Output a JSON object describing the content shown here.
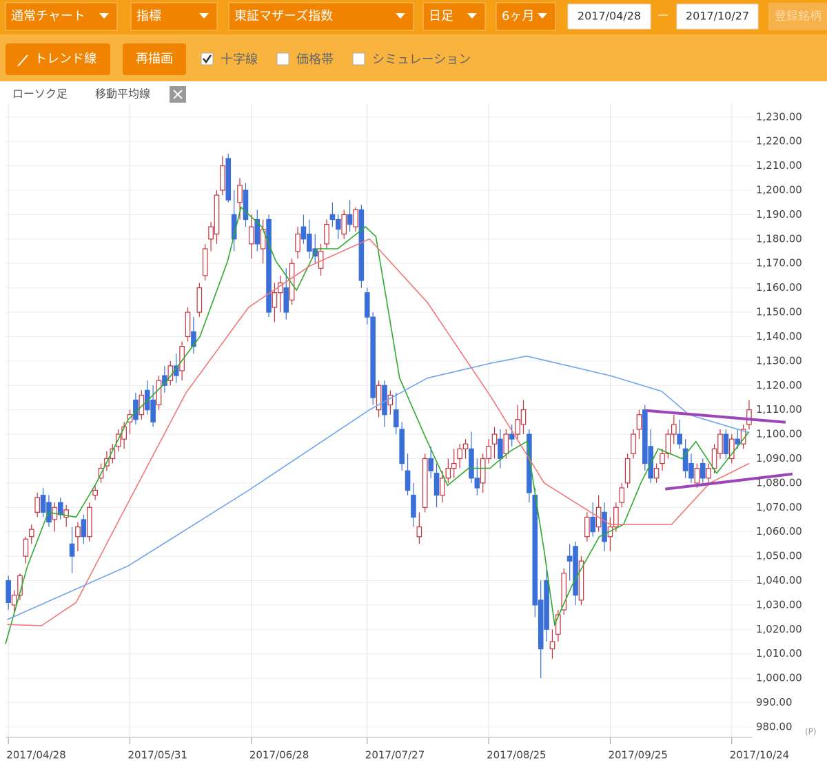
{
  "toolbar": {
    "chart_type": "通常チャート",
    "indicator": "指標",
    "symbol": "東証マザーズ指数",
    "interval": "日足",
    "period": "6ヶ月",
    "from": "2017/04/28",
    "separator": "—",
    "to": "2017/10/27",
    "registered": "登録銘柄"
  },
  "toolbar2": {
    "trend": "トレンド線",
    "redraw": "再描画",
    "checkboxes": [
      {
        "label": "十字線",
        "checked": true
      },
      {
        "label": "価格帯",
        "checked": false
      },
      {
        "label": "シミュレーション",
        "checked": false
      }
    ]
  },
  "chart_header": {
    "candles": "ローソク足",
    "ma": "移動平均線"
  },
  "chart_data": {
    "type": "candlestick",
    "unit_label": "(P)",
    "up_color": "#c8323c",
    "down_color": "#3a6fd8",
    "grid": true,
    "xlim": [
      -0.5,
      128.6
    ],
    "ylim": [
      976.3,
      1235.6
    ],
    "xticks": [
      {
        "value": 0,
        "label": "2017/04/28"
      },
      {
        "value": 21,
        "label": "2017/05/31"
      },
      {
        "value": 42,
        "label": "2017/06/28"
      },
      {
        "value": 62,
        "label": "2017/07/27"
      },
      {
        "value": 83,
        "label": "2017/08/25"
      },
      {
        "value": 104,
        "label": "2017/09/25"
      },
      {
        "value": 125,
        "label": "2017/10/24"
      }
    ],
    "yticks": [
      {
        "value": 980,
        "label": "980.00"
      },
      {
        "value": 990,
        "label": "990.00"
      },
      {
        "value": 1000,
        "label": "1,000.00"
      },
      {
        "value": 1010,
        "label": "1,010.00"
      },
      {
        "value": 1020,
        "label": "1,020.00"
      },
      {
        "value": 1030,
        "label": "1,030.00"
      },
      {
        "value": 1040,
        "label": "1,040.00"
      },
      {
        "value": 1050,
        "label": "1,050.00"
      },
      {
        "value": 1060,
        "label": "1,060.00"
      },
      {
        "value": 1070,
        "label": "1,070.00"
      },
      {
        "value": 1080,
        "label": "1,080.00"
      },
      {
        "value": 1090,
        "label": "1,090.00"
      },
      {
        "value": 1100,
        "label": "1,100.00"
      },
      {
        "value": 1110,
        "label": "1,110.00"
      },
      {
        "value": 1120,
        "label": "1,120.00"
      },
      {
        "value": 1130,
        "label": "1,130.00"
      },
      {
        "value": 1140,
        "label": "1,140.00"
      },
      {
        "value": 1150,
        "label": "1,150.00"
      },
      {
        "value": 1160,
        "label": "1,160.00"
      },
      {
        "value": 1170,
        "label": "1,170.00"
      },
      {
        "value": 1180,
        "label": "1,180.00"
      },
      {
        "value": 1190,
        "label": "1,190.00"
      },
      {
        "value": 1200,
        "label": "1,200.00"
      },
      {
        "value": 1210,
        "label": "1,210.00"
      },
      {
        "value": 1220,
        "label": "1,220.00"
      },
      {
        "value": 1230,
        "label": "1,230.00"
      }
    ],
    "candles": [
      [
        1040,
        1042,
        1028,
        1031
      ],
      [
        1030,
        1036,
        1027,
        1034
      ],
      [
        1034,
        1043,
        1032,
        1042
      ],
      [
        1050,
        1058,
        1047,
        1057
      ],
      [
        1058,
        1063,
        1055,
        1061
      ],
      [
        1068,
        1076,
        1066,
        1074
      ],
      [
        1075,
        1078,
        1066,
        1068
      ],
      [
        1072,
        1075,
        1062,
        1064
      ],
      [
        1065,
        1072,
        1060,
        1070
      ],
      [
        1072,
        1074,
        1065,
        1067
      ],
      [
        1066,
        1071,
        1062,
        1069
      ],
      [
        1055,
        1062,
        1043,
        1050
      ],
      [
        1058,
        1064,
        1052,
        1062
      ],
      [
        1065,
        1067,
        1055,
        1058
      ],
      [
        1058,
        1072,
        1056,
        1070
      ],
      [
        1075,
        1079,
        1073,
        1077
      ],
      [
        1082,
        1088,
        1080,
        1086
      ],
      [
        1087,
        1093,
        1085,
        1090
      ],
      [
        1090,
        1096,
        1088,
        1094
      ],
      [
        1095,
        1102,
        1093,
        1100
      ],
      [
        1098,
        1105,
        1094,
        1103
      ],
      [
        1105,
        1110,
        1100,
        1108
      ],
      [
        1114,
        1117,
        1104,
        1106
      ],
      [
        1108,
        1118,
        1106,
        1116
      ],
      [
        1118,
        1122,
        1108,
        1110
      ],
      [
        1114,
        1120,
        1103,
        1105
      ],
      [
        1112,
        1124,
        1110,
        1122
      ],
      [
        1124,
        1128,
        1117,
        1120
      ],
      [
        1122,
        1130,
        1120,
        1128
      ],
      [
        1128,
        1133,
        1121,
        1124
      ],
      [
        1126,
        1138,
        1122,
        1136
      ],
      [
        1140,
        1152,
        1138,
        1150
      ],
      [
        1142,
        1148,
        1133,
        1136
      ],
      [
        1150,
        1162,
        1148,
        1160
      ],
      [
        1165,
        1178,
        1163,
        1176
      ],
      [
        1180,
        1187,
        1175,
        1185
      ],
      [
        1182,
        1200,
        1178,
        1198
      ],
      [
        1200,
        1214,
        1198,
        1210
      ],
      [
        1213,
        1215,
        1195,
        1196
      ],
      [
        1190,
        1200,
        1175,
        1180
      ],
      [
        1195,
        1205,
        1188,
        1202
      ],
      [
        1200,
        1203,
        1185,
        1188
      ],
      [
        1178,
        1190,
        1172,
        1185
      ],
      [
        1188,
        1192,
        1175,
        1178
      ],
      [
        1176,
        1188,
        1170,
        1184
      ],
      [
        1188,
        1190,
        1148,
        1150
      ],
      [
        1152,
        1162,
        1146,
        1158
      ],
      [
        1158,
        1165,
        1150,
        1162
      ],
      [
        1160,
        1168,
        1147,
        1150
      ],
      [
        1155,
        1172,
        1153,
        1170
      ],
      [
        1175,
        1185,
        1172,
        1182
      ],
      [
        1185,
        1190,
        1178,
        1180
      ],
      [
        1182,
        1188,
        1172,
        1175
      ],
      [
        1176,
        1182,
        1170,
        1173
      ],
      [
        1168,
        1178,
        1165,
        1175
      ],
      [
        1178,
        1188,
        1176,
        1186
      ],
      [
        1190,
        1195,
        1185,
        1188
      ],
      [
        1188,
        1190,
        1180,
        1184
      ],
      [
        1182,
        1192,
        1180,
        1190
      ],
      [
        1190,
        1196,
        1183,
        1186
      ],
      [
        1185,
        1193,
        1183,
        1192
      ],
      [
        1192,
        1194,
        1160,
        1163
      ],
      [
        1158,
        1160,
        1145,
        1148
      ],
      [
        1148,
        1150,
        1112,
        1115
      ],
      [
        1110,
        1122,
        1107,
        1120
      ],
      [
        1120,
        1122,
        1103,
        1108
      ],
      [
        1112,
        1118,
        1108,
        1116
      ],
      [
        1110,
        1117,
        1100,
        1103
      ],
      [
        1102,
        1105,
        1085,
        1088
      ],
      [
        1085,
        1092,
        1075,
        1077
      ],
      [
        1075,
        1080,
        1062,
        1066
      ],
      [
        1058,
        1068,
        1055,
        1062
      ],
      [
        1070,
        1092,
        1068,
        1090
      ],
      [
        1090,
        1095,
        1082,
        1085
      ],
      [
        1084,
        1088,
        1070,
        1075
      ],
      [
        1075,
        1085,
        1072,
        1082
      ],
      [
        1082,
        1090,
        1080,
        1086
      ],
      [
        1086,
        1094,
        1082,
        1088
      ],
      [
        1090,
        1096,
        1086,
        1094
      ],
      [
        1094,
        1098,
        1090,
        1096
      ],
      [
        1094,
        1101,
        1080,
        1082
      ],
      [
        1082,
        1090,
        1075,
        1078
      ],
      [
        1080,
        1092,
        1076,
        1090
      ],
      [
        1090,
        1098,
        1088,
        1095
      ],
      [
        1096,
        1103,
        1090,
        1100
      ],
      [
        1098,
        1102,
        1086,
        1090
      ],
      [
        1092,
        1102,
        1090,
        1100
      ],
      [
        1100,
        1104,
        1095,
        1098
      ],
      [
        1100,
        1112,
        1098,
        1106
      ],
      [
        1104,
        1114,
        1100,
        1110
      ],
      [
        1100,
        1102,
        1072,
        1076
      ],
      [
        1075,
        1078,
        1025,
        1030
      ],
      [
        1032,
        1040,
        1000,
        1012
      ],
      [
        1040,
        1045,
        1015,
        1020
      ],
      [
        1012,
        1020,
        1008,
        1015
      ],
      [
        1018,
        1028,
        1015,
        1026
      ],
      [
        1028,
        1045,
        1026,
        1043
      ],
      [
        1050,
        1055,
        1040,
        1048
      ],
      [
        1054,
        1056,
        1030,
        1034
      ],
      [
        1032,
        1050,
        1030,
        1048
      ],
      [
        1058,
        1068,
        1056,
        1066
      ],
      [
        1066,
        1072,
        1058,
        1060
      ],
      [
        1062,
        1075,
        1060,
        1070
      ],
      [
        1068,
        1072,
        1052,
        1056
      ],
      [
        1058,
        1066,
        1052,
        1062
      ],
      [
        1062,
        1072,
        1060,
        1070
      ],
      [
        1072,
        1080,
        1070,
        1078
      ],
      [
        1080,
        1092,
        1078,
        1090
      ],
      [
        1092,
        1102,
        1090,
        1100
      ],
      [
        1102,
        1110,
        1098,
        1108
      ],
      [
        1110,
        1112,
        1085,
        1088
      ],
      [
        1095,
        1102,
        1080,
        1082
      ],
      [
        1082,
        1088,
        1080,
        1086
      ],
      [
        1088,
        1094,
        1085,
        1092
      ],
      [
        1092,
        1102,
        1090,
        1100
      ],
      [
        1100,
        1108,
        1096,
        1104
      ],
      [
        1100,
        1106,
        1094,
        1096
      ],
      [
        1094,
        1098,
        1082,
        1085
      ],
      [
        1088,
        1092,
        1080,
        1082
      ],
      [
        1080,
        1088,
        1078,
        1086
      ],
      [
        1088,
        1090,
        1080,
        1082
      ],
      [
        1082,
        1088,
        1080,
        1086
      ],
      [
        1086,
        1096,
        1084,
        1094
      ],
      [
        1092,
        1102,
        1090,
        1100
      ],
      [
        1100,
        1102,
        1090,
        1092
      ],
      [
        1090,
        1100,
        1088,
        1098
      ],
      [
        1098,
        1102,
        1094,
        1096
      ],
      [
        1096,
        1104,
        1094,
        1102
      ],
      [
        1104,
        1114,
        1102,
        1110
      ]
    ],
    "series": [
      {
        "color": "#2eaa2e",
        "x": [
          -0.5,
          3.3,
          6.9,
          11.7,
          15.2,
          20.7,
          27.1,
          33.1,
          37.9,
          40.2,
          43.8,
          46.2,
          49.8,
          53.3,
          56.9,
          61.7,
          63.5,
          65.2,
          67.6,
          72.4,
          75.9,
          79.5,
          83.2,
          86.7,
          89.6,
          92.6,
          94.4,
          97.4,
          102.1,
          106.3,
          109.3,
          112.3,
          116.4,
          118.8,
          122.4,
          128
        ],
        "values": [
          1014,
          1046,
          1068,
          1066,
          1080,
          1106,
          1121,
          1140,
          1171,
          1193,
          1185,
          1171,
          1159,
          1176,
          1176,
          1185,
          1181,
          1157,
          1123,
          1097,
          1079,
          1086,
          1086,
          1093,
          1097,
          1052,
          1022,
          1038,
          1058,
          1063,
          1080,
          1094,
          1090,
          1097,
          1084,
          1101
        ]
      },
      {
        "color": "#f07878",
        "x": [
          -0.2,
          5.7,
          11.7,
          20.7,
          30.7,
          41.5,
          52.1,
          62.4,
          72.4,
          83.2,
          92.6,
          104,
          109.3,
          114.6,
          121.2,
          128
        ],
        "values": [
          1022,
          1021.5,
          1031,
          1072,
          1117,
          1152,
          1169,
          1180,
          1154,
          1116,
          1080,
          1063,
          1063,
          1063,
          1080,
          1088
        ]
      },
      {
        "color": "#6fa3ef",
        "x": [
          -0.2,
          20.7,
          41.5,
          62.4,
          72.4,
          83.2,
          89.6,
          104,
          112.9,
          117.6,
          128
        ],
        "values": [
          1024,
          1046,
          1077,
          1110,
          1123,
          1129,
          1132,
          1124,
          1117.6,
          1108,
          1100.6
        ]
      }
    ],
    "trend_lines": [
      {
        "color": "#9b45b8",
        "x": [
          110.2,
          134.3
        ],
        "values": [
          1109.7,
          1104.9
        ]
      },
      {
        "color": "#9b45b8",
        "x": [
          113.5,
          135.5
        ],
        "values": [
          1077.5,
          1083.7
        ]
      }
    ]
  }
}
